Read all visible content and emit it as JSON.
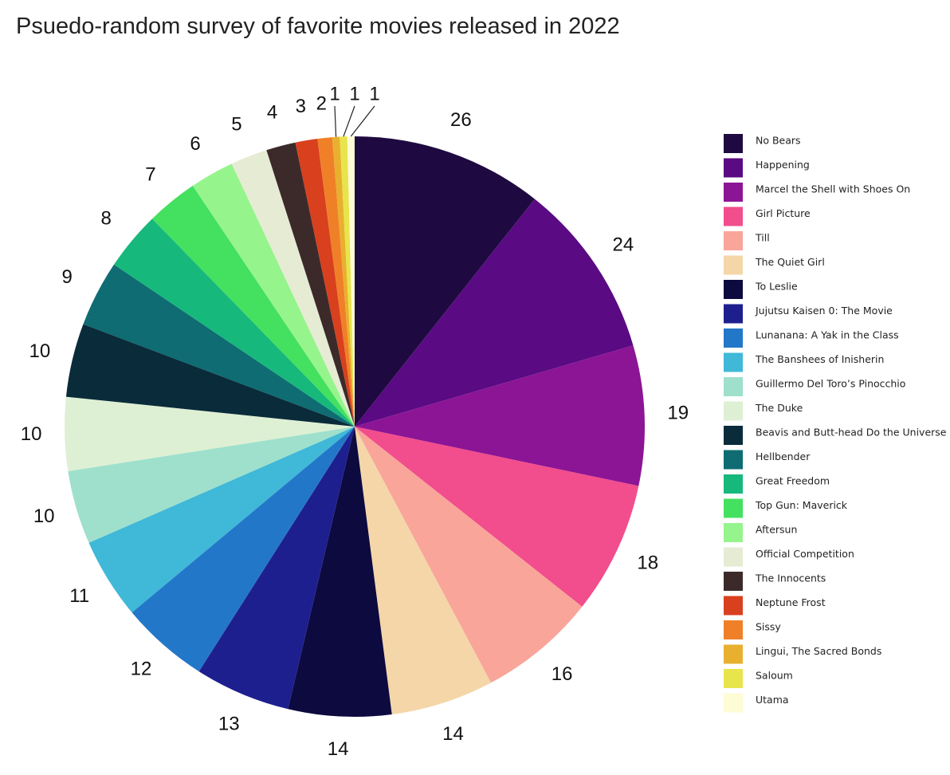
{
  "chart_data": {
    "type": "pie",
    "title": "Psuedo-random survey of favorite movies released in 2022",
    "categories": [
      "No Bears",
      "Happening",
      "Marcel the Shell with  Shoes On",
      "Girl Picture",
      "Till",
      "The Quiet Girl",
      "To Leslie",
      "Jujutsu Kaisen 0: The Movie",
      "Lunanana: A Yak in the Class",
      "The Banshees of Inisherin",
      "Guillermo Del Toro’s Pinocchio",
      "The Duke",
      "Beavis and Butt-head Do the Universe",
      "Hellbender",
      "Great Freedom",
      "Top Gun: Maverick",
      "Aftersun",
      "Official Competition",
      "The Innocents",
      "Neptune Frost",
      "Sissy",
      "Lingui, The Sacred Bonds",
      "Saloum",
      "Utama"
    ],
    "values": [
      26,
      24,
      19,
      18,
      16,
      14,
      14,
      13,
      12,
      11,
      10,
      10,
      10,
      9,
      8,
      7,
      6,
      5,
      4,
      3,
      2,
      1,
      1,
      1
    ],
    "colors": [
      "#1e0a40",
      "#5a0a82",
      "#8c1595",
      "#f24d8c",
      "#f9a59a",
      "#f4d6a8",
      "#0d0a40",
      "#1e1f8e",
      "#2377c8",
      "#40b8d8",
      "#9ee0cc",
      "#def0d4",
      "#0a2b3a",
      "#0e6c72",
      "#17b87c",
      "#44e060",
      "#96f48c",
      "#e6ecd4",
      "#3c2a2a",
      "#d8401e",
      "#f08028",
      "#e8b02e",
      "#e8e44c",
      "#fdfcd4"
    ],
    "legend": "right"
  }
}
